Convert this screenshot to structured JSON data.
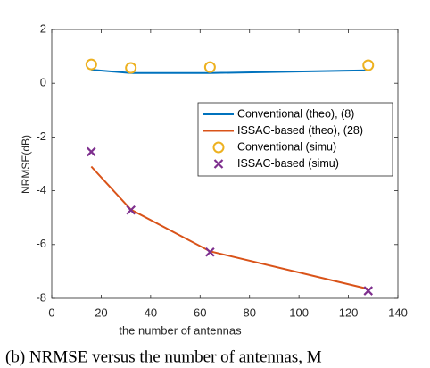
{
  "chart_data": {
    "type": "line",
    "xlabel": "the number of antennas",
    "ylabel": "NRMSE(dB)",
    "caption": "(b) NRMSE versus the number of antennas, M",
    "xlim": [
      0,
      140
    ],
    "xticks": [
      0,
      20,
      40,
      60,
      80,
      100,
      120,
      140
    ],
    "ylim": [
      -8,
      2
    ],
    "yticks": [
      -8,
      -6,
      -4,
      -2,
      0,
      2
    ],
    "grid": false,
    "legend": "northeast",
    "x": [
      16,
      32,
      64,
      128
    ],
    "series": [
      {
        "name": "Conventional (theo), (8)",
        "color": "#0072bd",
        "style": "line",
        "values": [
          0.5,
          0.38,
          0.38,
          0.48
        ]
      },
      {
        "name": "ISSAC-based (theo), (28)",
        "color": "#d95319",
        "style": "line",
        "values": [
          -3.1,
          -4.7,
          -6.25,
          -7.65
        ]
      },
      {
        "name": "Conventional (simu)",
        "color": "#edb120",
        "style": "circle",
        "values": [
          0.7,
          0.57,
          0.6,
          0.67
        ]
      },
      {
        "name": "ISSAC-based (simu)",
        "color": "#7e2f8e",
        "style": "cross",
        "values": [
          -2.55,
          -4.72,
          -6.28,
          -7.72
        ]
      }
    ]
  }
}
